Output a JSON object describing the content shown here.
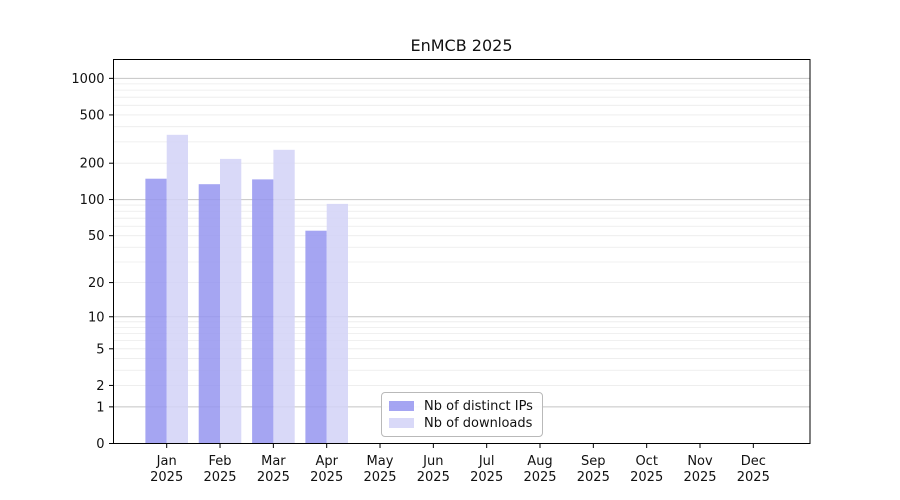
{
  "chart_data": {
    "type": "bar",
    "title": "EnMCB 2025",
    "x_axis": {
      "categories": [
        "Jan",
        "Feb",
        "Mar",
        "Apr",
        "May",
        "Jun",
        "Jul",
        "Aug",
        "Sep",
        "Oct",
        "Nov",
        "Dec"
      ],
      "year": "2025"
    },
    "y_axis": {
      "ticks": [
        1000,
        500,
        200,
        100,
        50,
        20,
        10,
        5,
        2,
        1,
        0
      ],
      "scale": "log10(value+1)",
      "min": 0,
      "max_labeled": 1000
    },
    "series": [
      {
        "name": "Nb of distinct IPs",
        "color": "#9595f0",
        "values": [
          149,
          134,
          147,
          55,
          null,
          null,
          null,
          null,
          null,
          null,
          null,
          null
        ]
      },
      {
        "name": "Nb of downloads",
        "color": "#d2d2f7",
        "values": [
          343,
          217,
          258,
          92,
          null,
          null,
          null,
          null,
          null,
          null,
          null,
          null
        ]
      }
    ],
    "grid": {
      "major_lines_at": [
        1,
        10,
        100,
        1000
      ],
      "major_color": "#c4c4c4",
      "minor_color": "#ebebeb"
    },
    "legend": {
      "position": "lower-center",
      "border_color": "#b9b9b9"
    },
    "colors": {
      "background": "#ffffff",
      "axis": "#000000",
      "text": "#111111"
    }
  }
}
